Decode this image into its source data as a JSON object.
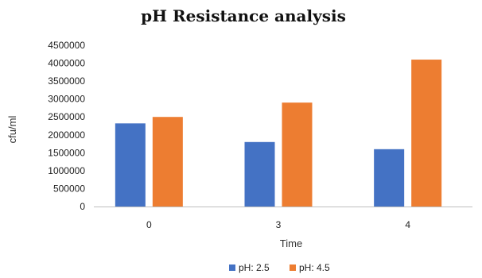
{
  "chart_data": {
    "type": "bar",
    "title": "pH Resistance analysis",
    "xlabel": "Time",
    "ylabel": "cfu/ml",
    "categories": [
      "0",
      "3",
      "4"
    ],
    "ylim": [
      0,
      4500000
    ],
    "yticks": [
      "0",
      "500000",
      "1000000",
      "1500000",
      "2000000",
      "2500000",
      "3000000",
      "3500000",
      "4000000",
      "4500000"
    ],
    "grid": false,
    "legend_position": "bottom",
    "series": [
      {
        "name": "pH: 2.5",
        "color": "#4472C4",
        "values": [
          2320000,
          1800000,
          1600000
        ]
      },
      {
        "name": "pH: 4.5",
        "color": "#ED7D31",
        "values": [
          2500000,
          2900000,
          4100000
        ]
      }
    ]
  }
}
